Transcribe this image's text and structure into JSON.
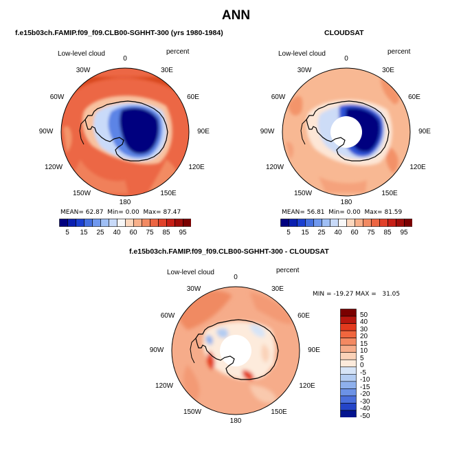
{
  "title": "ANN",
  "panels": [
    {
      "id": "model",
      "title": "f.e15b03ch.FAMIP.f09_f09.CLB00-SGHHT-300 (yrs 1980-1984)",
      "left_label": "Low-level cloud",
      "right_label": "percent",
      "stats": {
        "mean_label": "MEAN=",
        "mean": "62.87",
        "min_label": "Min=",
        "min": "0.00",
        "max_label": "Max=",
        "max": "87.47"
      },
      "colorbar_labels": [
        "5",
        "15",
        "25",
        "40",
        "60",
        "75",
        "85",
        "95"
      ]
    },
    {
      "id": "obs",
      "title": "CLOUDSAT",
      "left_label": "Low-level cloud",
      "right_label": "percent",
      "stats": {
        "mean_label": "MEAN=",
        "mean": "56.81",
        "min_label": "Min=",
        "min": "0.00",
        "max_label": "Max=",
        "max": "81.59"
      },
      "colorbar_labels": [
        "5",
        "15",
        "25",
        "40",
        "60",
        "75",
        "85",
        "95"
      ]
    },
    {
      "id": "diff",
      "title": "f.e15b03ch.FAMIP.f09_f09.CLB00-SGHHT-300 - CLOUDSAT",
      "left_label": "Low-level cloud",
      "right_label": "percent",
      "minmax": "MIN = -19.27 MAX =   31.05",
      "colorbar_labels": [
        "50",
        "40",
        "30",
        "20",
        "15",
        "10",
        "5",
        "0",
        "-5",
        "-10",
        "-15",
        "-20",
        "-30",
        "-40",
        "-50"
      ]
    }
  ],
  "longitude_labels": [
    "0",
    "30E",
    "60E",
    "90E",
    "120E",
    "150E",
    "180",
    "150W",
    "120W",
    "90W",
    "60W",
    "30W"
  ],
  "colors": {
    "abs_scale": [
      "#00007f",
      "#0a1fb0",
      "#1a3fd0",
      "#4470e0",
      "#6f98ee",
      "#9fbff5",
      "#c8daf9",
      "#f7f7f7",
      "#fcd7bd",
      "#f8b08a",
      "#f28a62",
      "#ec6542",
      "#e1412a",
      "#c71f16",
      "#a00d0a",
      "#7a0000"
    ],
    "diff_scale": [
      "#7a0000",
      "#b8170f",
      "#e33a1e",
      "#f0663e",
      "#f38962",
      "#f6ac8a",
      "#fad2b8",
      "#fdebdc",
      "#d6e4f7",
      "#b3ccf2",
      "#8eb0ec",
      "#6c92e6",
      "#4a6fdc",
      "#2445c8",
      "#04148f"
    ]
  }
}
